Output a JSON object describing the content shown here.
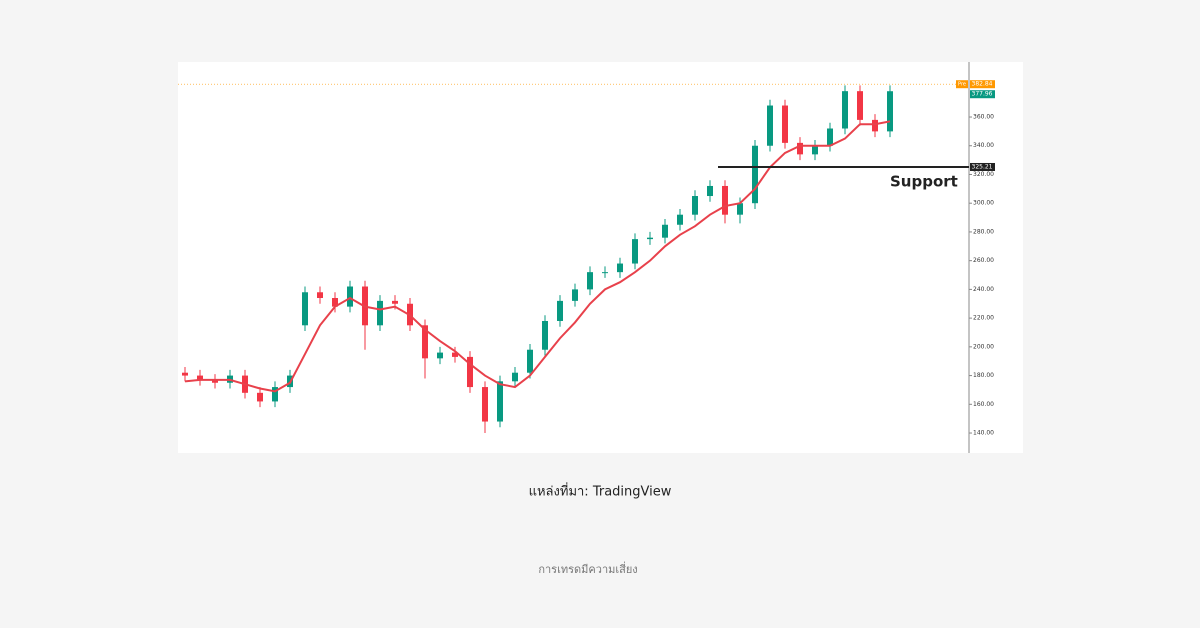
{
  "chart_data": {
    "type": "candlestick",
    "open": [
      182,
      180,
      177,
      175,
      180,
      168,
      162,
      172,
      215,
      238,
      234,
      228,
      242,
      215,
      232,
      230,
      215,
      192,
      196,
      193,
      172,
      148,
      176,
      182,
      198,
      218,
      232,
      240,
      252,
      252,
      258,
      275,
      276,
      285,
      292,
      305,
      312,
      292,
      300,
      340,
      368,
      342,
      334,
      340,
      352,
      378,
      358,
      350
    ],
    "high": [
      186,
      184,
      181,
      184,
      184,
      172,
      176,
      184,
      242,
      242,
      238,
      246,
      246,
      236,
      236,
      234,
      219,
      200,
      200,
      197,
      176,
      180,
      186,
      202,
      222,
      236,
      244,
      256,
      256,
      262,
      279,
      280,
      289,
      296,
      309,
      316,
      316,
      304,
      344,
      372,
      372,
      346,
      344,
      356,
      382,
      382,
      362,
      382
    ],
    "low": [
      176,
      173,
      171,
      171,
      164,
      158,
      158,
      168,
      211,
      230,
      224,
      224,
      198,
      211,
      226,
      211,
      178,
      188,
      189,
      168,
      140,
      144,
      172,
      178,
      194,
      214,
      228,
      236,
      248,
      248,
      254,
      271,
      272,
      281,
      288,
      301,
      286,
      286,
      296,
      336,
      338,
      330,
      330,
      336,
      348,
      354,
      346,
      346
    ],
    "close": [
      180,
      177,
      175,
      180,
      168,
      162,
      172,
      180,
      238,
      234,
      228,
      242,
      215,
      232,
      230,
      215,
      192,
      196,
      193,
      172,
      148,
      176,
      182,
      198,
      218,
      232,
      240,
      252,
      252,
      258,
      275,
      276,
      285,
      292,
      305,
      312,
      292,
      300,
      340,
      368,
      342,
      334,
      340,
      352,
      378,
      358,
      350,
      377.96
    ],
    "up_color": "#089981",
    "down_color": "#f23645",
    "series": [
      {
        "color": "#e8414b",
        "values": [
          176,
          177,
          177,
          177,
          174,
          171,
          169,
          175,
          195,
          215,
          228,
          234,
          228,
          226,
          228,
          222,
          212,
          204,
          197,
          188,
          180,
          174,
          172,
          180,
          193,
          206,
          217,
          230,
          240,
          245,
          252,
          260,
          270,
          278,
          284,
          292,
          298,
          300,
          310,
          325,
          335,
          340,
          340,
          340,
          345,
          355,
          355,
          357
        ]
      }
    ],
    "ylim": [
      126.1,
      398.3
    ],
    "yticks": [
      {
        "value": 140,
        "label": "140.00"
      },
      {
        "value": 160,
        "label": "160.00"
      },
      {
        "value": 180,
        "label": "180.00"
      },
      {
        "value": 200,
        "label": "200.00"
      },
      {
        "value": 220,
        "label": "220.00"
      },
      {
        "value": 240,
        "label": "240.00"
      },
      {
        "value": 260,
        "label": "260.00"
      },
      {
        "value": 280,
        "label": "280.00"
      },
      {
        "value": 300,
        "label": "300.00"
      },
      {
        "value": 320,
        "label": "320.00"
      },
      {
        "value": 340,
        "label": "340.00"
      },
      {
        "value": 360,
        "label": "360.00"
      }
    ],
    "pre_market": {
      "tag": "Pre",
      "value": 382.84,
      "label": "382.84",
      "color": "#ff9800"
    },
    "last_price": {
      "value": 377.96,
      "label": "377.96",
      "color": "#089981"
    },
    "support": {
      "text": "Support",
      "value": 325.21,
      "label": "325.21"
    }
  },
  "caption": "แหล่งที่มา: TradingView",
  "footer": "การเทรดมีความเสี่ยง"
}
